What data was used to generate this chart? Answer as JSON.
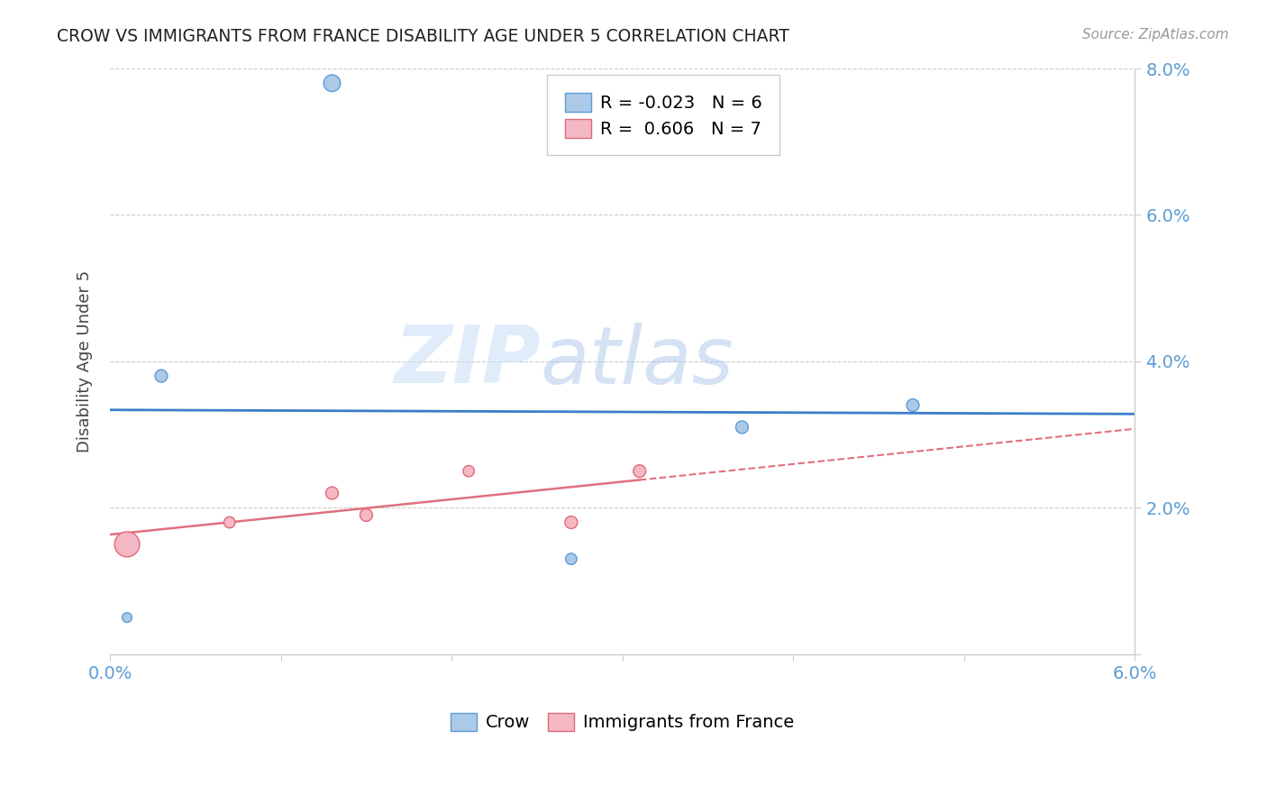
{
  "title": "CROW VS IMMIGRANTS FROM FRANCE DISABILITY AGE UNDER 5 CORRELATION CHART",
  "source": "Source: ZipAtlas.com",
  "ylabel": "Disability Age Under 5",
  "xlim": [
    0.0,
    0.06
  ],
  "ylim": [
    0.0,
    0.08
  ],
  "watermark_zip": "ZIP",
  "watermark_atlas": "atlas",
  "crow_x": [
    0.001,
    0.003,
    0.013,
    0.027,
    0.037,
    0.047
  ],
  "crow_y": [
    0.005,
    0.038,
    0.078,
    0.013,
    0.031,
    0.034
  ],
  "crow_sizes": [
    60,
    100,
    180,
    80,
    100,
    100
  ],
  "france_x": [
    0.001,
    0.007,
    0.013,
    0.015,
    0.021,
    0.027,
    0.031
  ],
  "france_y": [
    0.015,
    0.018,
    0.022,
    0.019,
    0.025,
    0.018,
    0.025
  ],
  "france_sizes": [
    400,
    80,
    100,
    100,
    80,
    100,
    100
  ],
  "crow_color": "#adc9e8",
  "crow_edge_color": "#5b9bd5",
  "france_color": "#f4b8c4",
  "france_edge_color": "#e06878",
  "crow_line_color": "#3a7dc9",
  "france_line_color": "#e07080",
  "legend_crow_R": "-0.023",
  "legend_crow_N": "6",
  "legend_france_R": "0.606",
  "legend_france_N": "7",
  "grid_color": "#cccccc",
  "background_color": "#ffffff",
  "title_color": "#222222",
  "source_color": "#999999",
  "axis_tick_color": "#5b9bd5",
  "ylabel_color": "#444444"
}
